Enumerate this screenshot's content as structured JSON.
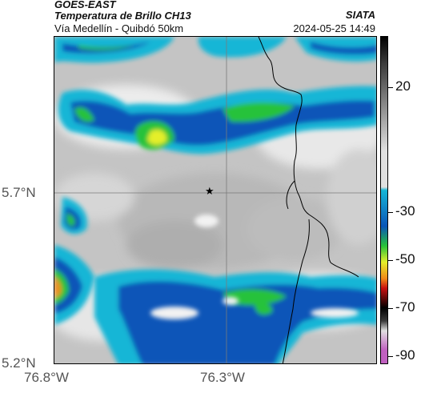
{
  "header": {
    "title_line1": "GOES-EAST",
    "title_line2": "Temperatura de Brillo CH13",
    "subtitle": "Vía Medellín - Quibdó 50km",
    "brand": "SIATA",
    "timestamp": "2024-05-25 14:49"
  },
  "map": {
    "lat_labels": [
      "5.7°N",
      "5.2°N"
    ],
    "lon_labels": [
      "76.8°W",
      "76.3°W"
    ],
    "station_marker": "star-icon"
  },
  "colorbar": {
    "ticks": [
      "20",
      "-30",
      "-50",
      "-70",
      "-90"
    ],
    "colors": {
      "gray_light": "#e0e0e0",
      "gray_dark": "#3a3a3a",
      "cyan": "#16b6d6",
      "blue": "#0a55b8",
      "green": "#27c23a",
      "yellow": "#e4ef2a",
      "orange": "#f08a18",
      "red": "#c81010",
      "black": "#000000",
      "magenta": "#c060c0"
    }
  }
}
